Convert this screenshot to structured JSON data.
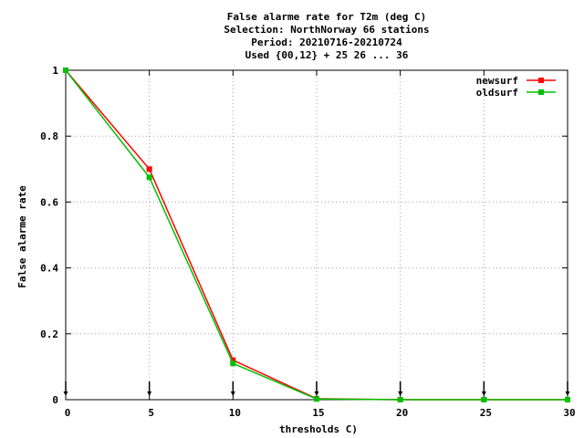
{
  "chart_data": {
    "type": "line",
    "title": [
      "False alarme rate  for T2m (deg C)",
      "Selection: NorthNorway     66 stations",
      "Period: 20210716-20210724",
      "Used {00,12} + 25 26 ... 36"
    ],
    "xlabel": "thresholds C)",
    "ylabel": "False alarme rate",
    "xlim": [
      0,
      30
    ],
    "ylim": [
      0,
      1
    ],
    "xticks": [
      0,
      5,
      10,
      15,
      20,
      25,
      30
    ],
    "yticks": [
      0,
      0.2,
      0.4,
      0.6,
      0.8,
      1
    ],
    "ytick_labels": [
      "0",
      "0.2",
      "0.4",
      "0.6",
      "0.8",
      "1"
    ],
    "grid": true,
    "legend_position": "top-right",
    "x": [
      0,
      5,
      10,
      15,
      20,
      25,
      30
    ],
    "series": [
      {
        "name": "newsurf",
        "color": "#ff0000",
        "values": [
          1.0,
          0.7,
          0.12,
          0.003,
          0.0,
          0.0,
          0.0
        ]
      },
      {
        "name": "oldsurf",
        "color": "#00c000",
        "values": [
          1.0,
          0.675,
          0.11,
          0.002,
          0.0,
          0.0,
          0.0
        ]
      }
    ],
    "arrow_markers_x": [
      0,
      5,
      10,
      15,
      20,
      25,
      30
    ]
  }
}
